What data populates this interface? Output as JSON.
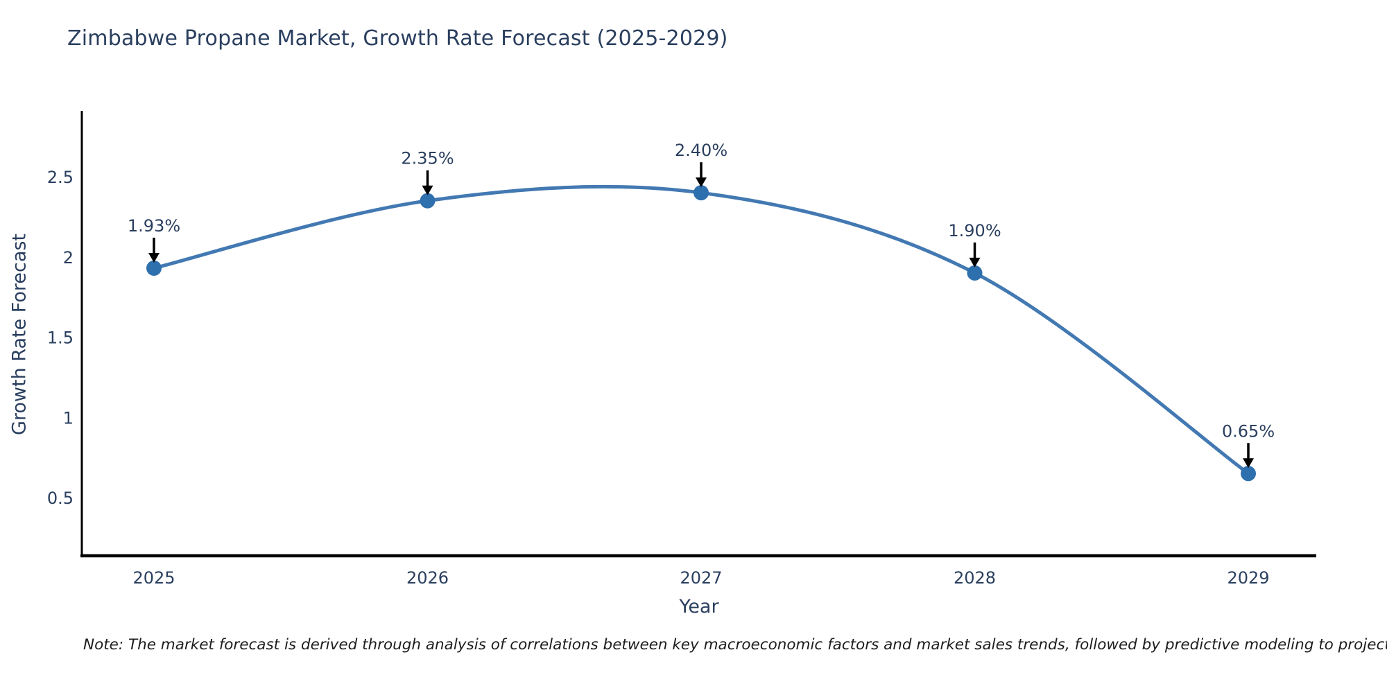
{
  "title": "Zimbabwe Propane Market, Growth Rate Forecast (2025-2029)",
  "note": "Note: The market forecast is derived through analysis of correlations between key macroeconomic factors and market sales trends, followed by predictive modeling to project future sales",
  "chart_data": {
    "type": "line",
    "title": "Zimbabwe Propane Market, Growth Rate Forecast (2025-2029)",
    "xlabel": "Year",
    "ylabel": "Growth Rate Forecast",
    "categories": [
      "2025",
      "2026",
      "2027",
      "2028",
      "2029"
    ],
    "series": [
      {
        "name": "Growth Rate Forecast",
        "values": [
          1.93,
          2.35,
          2.4,
          1.9,
          0.65
        ]
      }
    ],
    "point_labels": [
      "1.93%",
      "2.35%",
      "2.40%",
      "1.90%",
      "0.65%"
    ],
    "yticks": [
      0.5,
      1,
      1.5,
      2,
      2.5
    ],
    "ylim": [
      0.14,
      2.91
    ],
    "line_shape": "spline",
    "grid": false,
    "legend": "none",
    "colors": {
      "line": "#4379b2",
      "marker": "#2e6fae",
      "axis": "#000000",
      "annotation_arrow": "#000000",
      "text": "#2a3f5f"
    }
  }
}
